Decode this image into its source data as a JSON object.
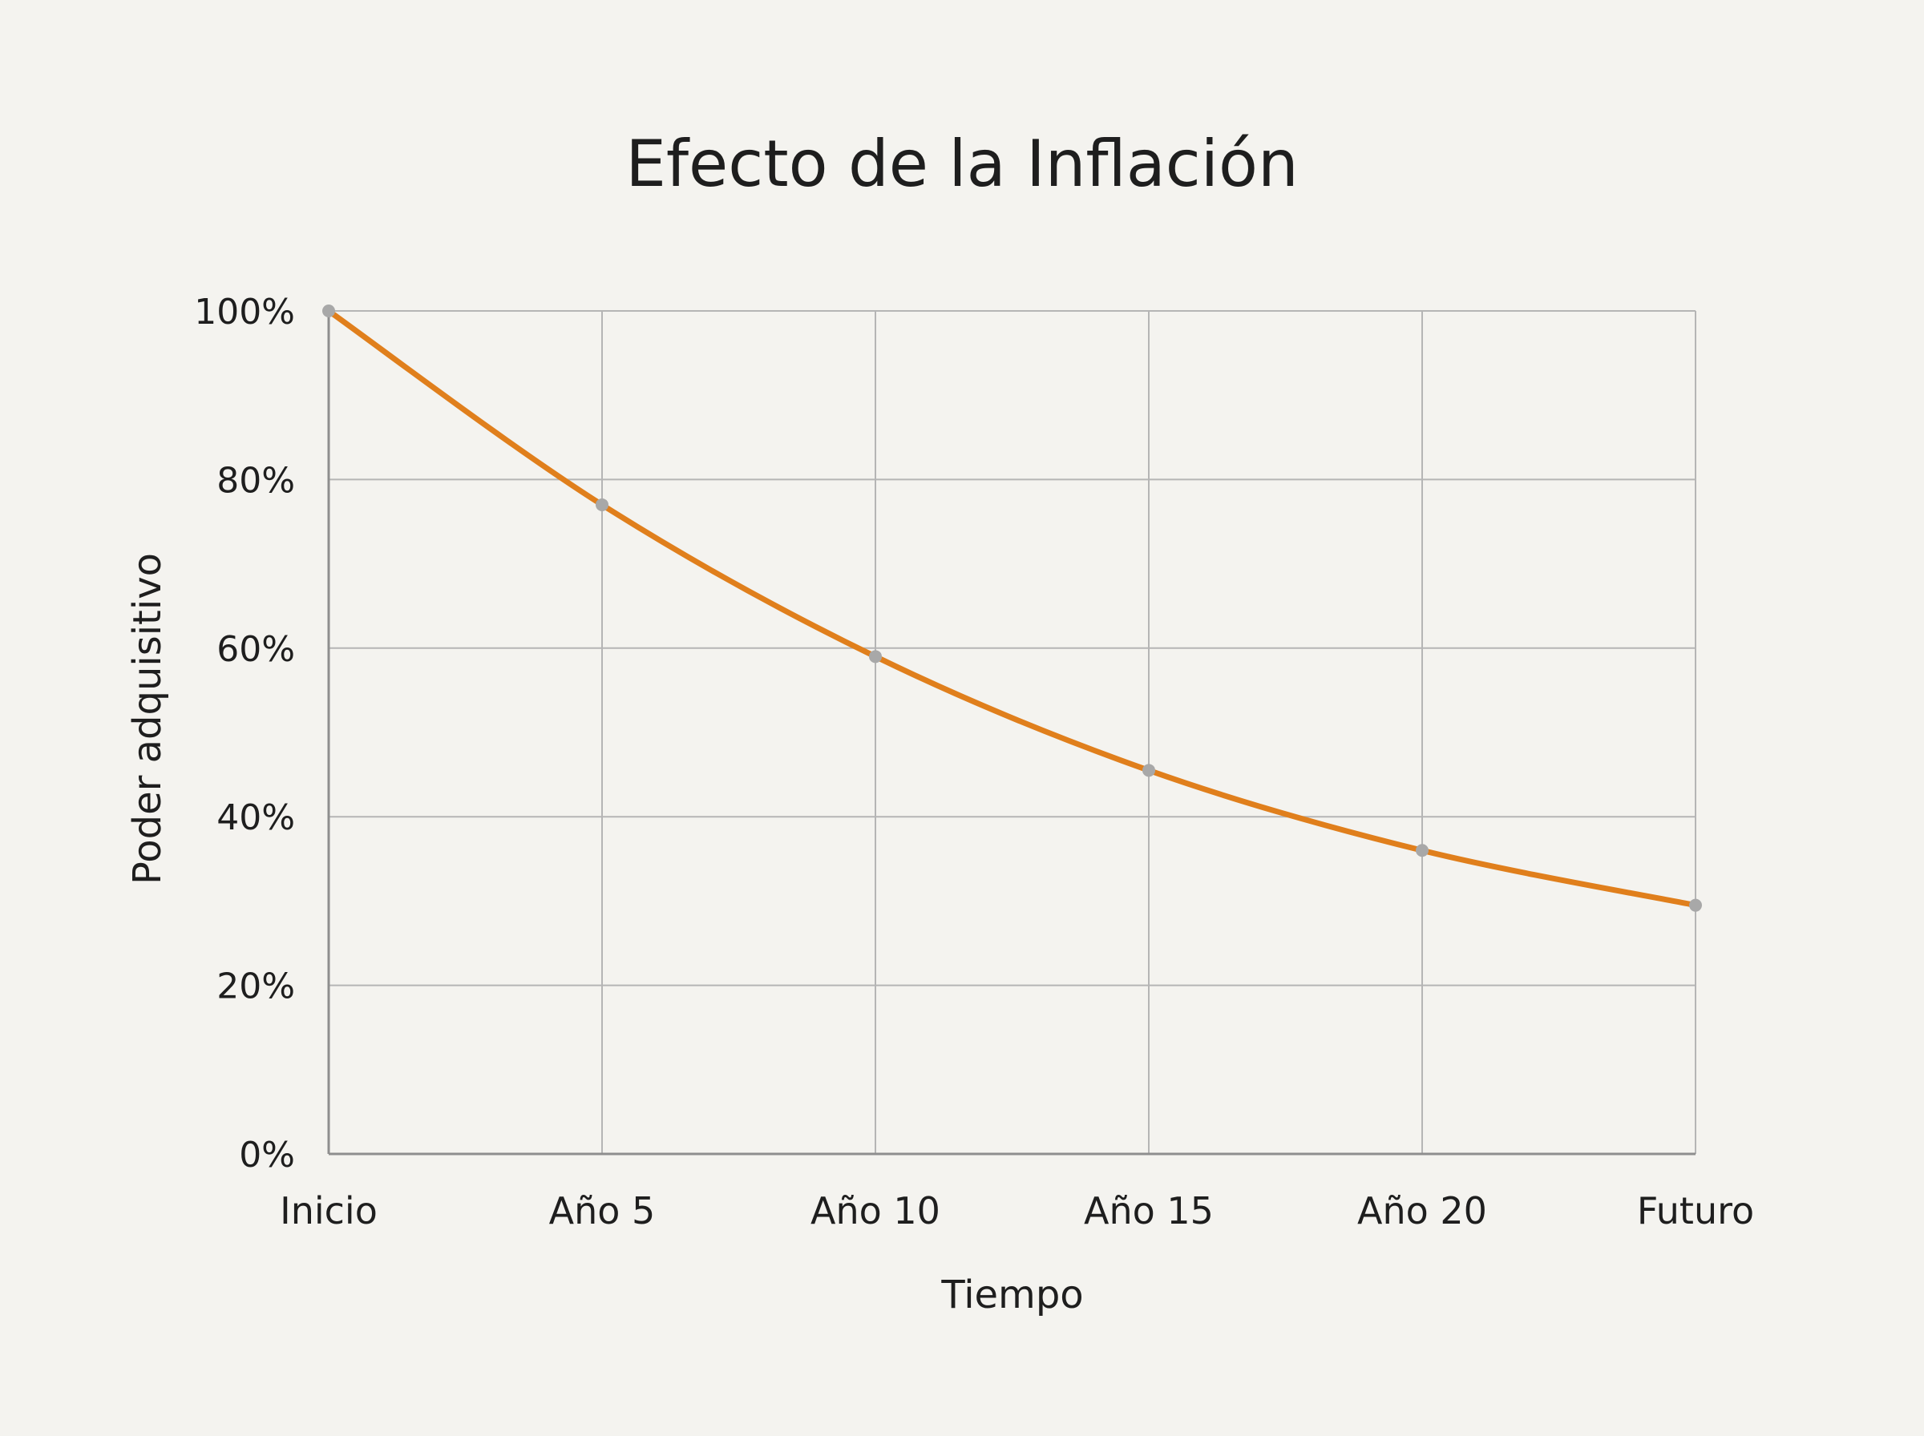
{
  "chart_data": {
    "type": "line",
    "title": "Efecto de la Inflación",
    "xlabel": "Tiempo",
    "ylabel": "Poder adquisitivo",
    "categories": [
      "Inicio",
      "Año 5",
      "Año 10",
      "Año 15",
      "Año 20",
      "Futuro"
    ],
    "series": [
      {
        "values": [
          100,
          77,
          59,
          45.5,
          36,
          29.5
        ],
        "color": "#e07f1c",
        "marker_color": "#a8a8a8"
      }
    ],
    "ylim": [
      0,
      100
    ],
    "yticks": [
      0,
      20,
      40,
      60,
      80,
      100
    ],
    "ytick_suffix": "%",
    "grid": true,
    "legend": "none",
    "colors": {
      "background": "#f4f3ef",
      "grid": "#b5b5b5",
      "axis": "#8e8e8e",
      "text": "#1e1e1e"
    }
  }
}
